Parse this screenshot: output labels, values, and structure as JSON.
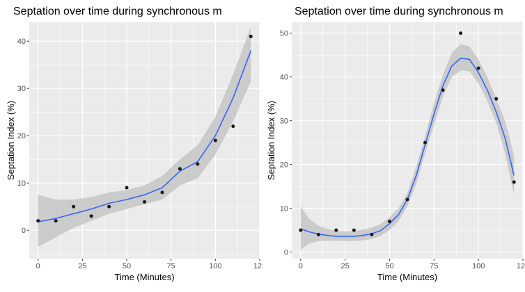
{
  "chart_data": [
    {
      "type": "scatter",
      "title": "Septation over time during synchronous m",
      "xlabel": "Time (Minutes)",
      "ylabel": "Septation Index (%)",
      "xlim": [
        -5,
        125
      ],
      "ylim": [
        -6,
        44
      ],
      "xticks": [
        0,
        25,
        50,
        75,
        100,
        125
      ],
      "yticks": [
        0,
        10,
        20,
        30,
        40
      ],
      "grid": true,
      "colors": {
        "panel": "#ebebeb",
        "grid": "#ffffff",
        "points": "#1a1a1a",
        "smooth": "#3366ff",
        "ribbon": "#c6c6c6"
      },
      "x": [
        0,
        10,
        20,
        30,
        40,
        50,
        60,
        70,
        80,
        90,
        100,
        110,
        120
      ],
      "y": [
        2,
        2,
        5,
        3,
        5,
        9,
        6,
        8,
        13,
        14,
        19,
        22,
        41
      ],
      "smooth": {
        "x": [
          0,
          10,
          20,
          30,
          40,
          50,
          60,
          70,
          80,
          90,
          100,
          110,
          120
        ],
        "y": [
          1.8,
          2.5,
          3.5,
          4.5,
          5.7,
          6.5,
          7.5,
          9,
          12.5,
          14.5,
          20,
          28,
          38
        ],
        "lower": [
          -3.5,
          -1.5,
          0.5,
          2,
          3.5,
          4.5,
          5.5,
          6.5,
          9.5,
          11,
          16,
          23,
          31.5
        ],
        "upper": [
          7.5,
          6.5,
          6.5,
          7,
          8,
          8.5,
          9.5,
          11.5,
          15,
          18,
          24,
          33,
          43
        ]
      }
    },
    {
      "type": "scatter",
      "title": "Septation over time during synchronous m",
      "xlabel": "Time (Minutes)",
      "ylabel": "Septation Index (%)",
      "xlim": [
        -5,
        125
      ],
      "ylim": [
        -1.5,
        52.5
      ],
      "xticks": [
        0,
        25,
        50,
        75,
        100,
        125
      ],
      "yticks": [
        0,
        10,
        20,
        30,
        40,
        50
      ],
      "grid": true,
      "colors": {
        "panel": "#ebebeb",
        "grid": "#ffffff",
        "points": "#1a1a1a",
        "smooth": "#3366ff",
        "ribbon": "#c6c6c6"
      },
      "x": [
        0,
        10,
        20,
        30,
        40,
        50,
        60,
        70,
        80,
        90,
        100,
        110,
        120
      ],
      "y": [
        5,
        4,
        5,
        5,
        4,
        7,
        12,
        25,
        37,
        50,
        42,
        35,
        16
      ],
      "smooth": {
        "x": [
          0,
          5,
          10,
          15,
          20,
          25,
          30,
          35,
          40,
          45,
          50,
          55,
          60,
          65,
          70,
          75,
          80,
          85,
          90,
          95,
          100,
          105,
          110,
          115,
          120
        ],
        "y": [
          5.3,
          4.6,
          4.1,
          3.8,
          3.6,
          3.6,
          3.6,
          3.8,
          4.2,
          4.9,
          6.5,
          8.5,
          12,
          17.5,
          24.5,
          31.5,
          38,
          42.5,
          44.3,
          44,
          41,
          37,
          32,
          26,
          17.5
        ],
        "lower": [
          0.5,
          2,
          2.5,
          2.6,
          2.6,
          2.5,
          2.5,
          2.7,
          3,
          3.7,
          5,
          7,
          10.5,
          15.5,
          22.5,
          29,
          35.5,
          40,
          41.5,
          41.3,
          38.5,
          34.5,
          29.5,
          22.5,
          13
        ],
        "upper": [
          10.5,
          7.5,
          6,
          5.3,
          4.8,
          4.7,
          4.8,
          5.1,
          5.6,
          6.4,
          8,
          10,
          13.5,
          19.5,
          26.5,
          34,
          40.5,
          45.5,
          47.5,
          47,
          44,
          40,
          35,
          30,
          22
        ]
      }
    }
  ]
}
